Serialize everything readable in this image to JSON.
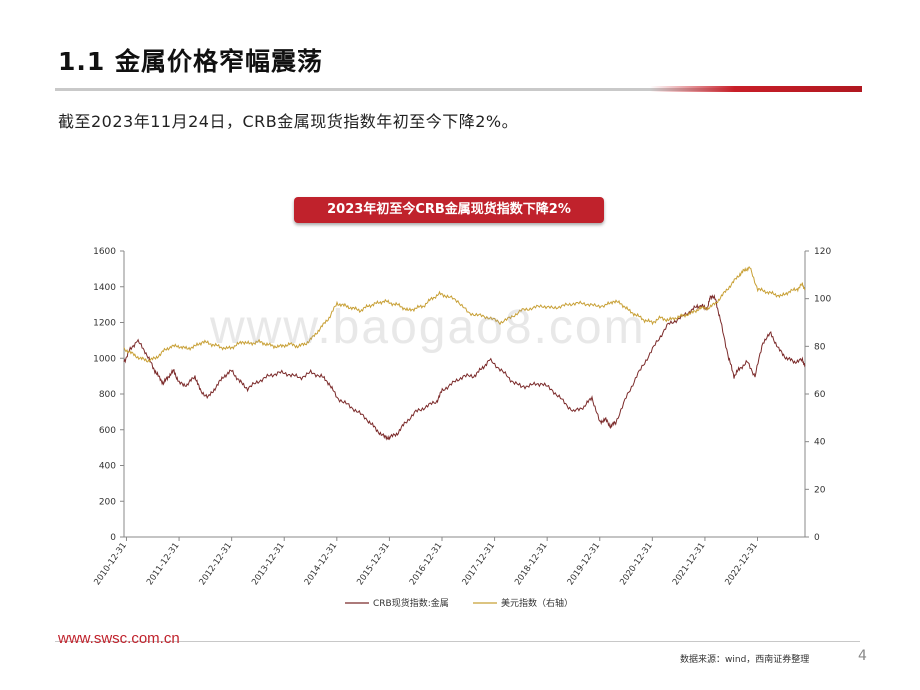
{
  "slide": {
    "title": "1.1  金属价格窄幅震荡",
    "subtitle": "截至2023年11月24日，CRB金属现货指数年初至今下降2%。",
    "chart_banner": "2023年初至今CRB金属现货指数下降2%",
    "watermark": "www.baogao8.com",
    "footer_url": "www.swsc.com.cn",
    "source": "数据来源：wind，西南证券整理",
    "page_number": "4",
    "accent_color": "#c0222c"
  },
  "chart_data": {
    "type": "line",
    "x_tick_labels": [
      "2010-12-31",
      "2011-12-31",
      "2012-12-31",
      "2013-12-31",
      "2014-12-31",
      "2015-12-31",
      "2016-12-31",
      "2017-12-31",
      "2018-12-31",
      "2019-12-31",
      "2020-12-31",
      "2021-12-31",
      "2022-12-31"
    ],
    "x_range": [
      2010.95,
      2023.9
    ],
    "ylim_left": [
      0,
      1600
    ],
    "yticks_left": [
      0,
      200,
      400,
      600,
      800,
      1000,
      1200,
      1400,
      1600
    ],
    "ylim_right": [
      0,
      120
    ],
    "yticks_right": [
      0,
      20,
      40,
      60,
      80,
      100,
      120
    ],
    "grid": false,
    "legend_position": "bottom",
    "series": [
      {
        "name": "CRB现货指数:金属",
        "axis": "left",
        "color": "#7b2a2a",
        "x": [
          2010.95,
          2011.05,
          2011.2,
          2011.35,
          2011.5,
          2011.6,
          2011.7,
          2011.8,
          2011.9,
          2012.0,
          2012.15,
          2012.3,
          2012.4,
          2012.55,
          2012.7,
          2012.85,
          2013.0,
          2013.15,
          2013.3,
          2013.5,
          2013.7,
          2013.9,
          2014.1,
          2014.3,
          2014.5,
          2014.7,
          2014.85,
          2015.0,
          2015.2,
          2015.4,
          2015.6,
          2015.75,
          2015.9,
          2016.0,
          2016.15,
          2016.3,
          2016.5,
          2016.7,
          2016.9,
          2017.0,
          2017.2,
          2017.4,
          2017.6,
          2017.75,
          2017.9,
          2018.1,
          2018.3,
          2018.5,
          2018.7,
          2018.9,
          2019.1,
          2019.3,
          2019.5,
          2019.7,
          2019.85,
          2020.0,
          2020.1,
          2020.2,
          2020.3,
          2020.5,
          2020.7,
          2020.9,
          2021.1,
          2021.3,
          2021.5,
          2021.7,
          2021.85,
          2021.95,
          2022.05,
          2022.1,
          2022.2,
          2022.3,
          2022.45,
          2022.55,
          2022.65,
          2022.8,
          2022.95,
          2023.1,
          2023.25,
          2023.4,
          2023.55,
          2023.7,
          2023.85,
          2023.9
        ],
        "y": [
          980,
          1040,
          1100,
          1040,
          950,
          900,
          860,
          900,
          930,
          860,
          850,
          900,
          820,
          780,
          840,
          900,
          930,
          870,
          830,
          870,
          900,
          920,
          910,
          890,
          920,
          900,
          860,
          780,
          740,
          700,
          650,
          600,
          560,
          555,
          580,
          640,
          700,
          730,
          760,
          820,
          860,
          900,
          900,
          940,
          990,
          940,
          880,
          840,
          850,
          860,
          820,
          760,
          700,
          730,
          780,
          640,
          660,
          620,
          640,
          780,
          900,
          1000,
          1100,
          1190,
          1220,
          1260,
          1290,
          1290,
          1280,
          1350,
          1330,
          1200,
          1000,
          900,
          940,
          980,
          900,
          1090,
          1140,
          1050,
          1000,
          980,
          990,
          960
        ]
      },
      {
        "name": "美元指数（右轴）",
        "axis": "right",
        "color": "#c8a036",
        "x": [
          2010.95,
          2011.1,
          2011.25,
          2011.4,
          2011.55,
          2011.7,
          2011.85,
          2012.0,
          2012.15,
          2012.3,
          2012.45,
          2012.6,
          2012.75,
          2012.9,
          2013.05,
          2013.2,
          2013.35,
          2013.5,
          2013.65,
          2013.8,
          2013.95,
          2014.1,
          2014.25,
          2014.4,
          2014.55,
          2014.7,
          2014.85,
          2015.0,
          2015.15,
          2015.3,
          2015.45,
          2015.6,
          2015.75,
          2015.9,
          2016.05,
          2016.2,
          2016.35,
          2016.5,
          2016.65,
          2016.8,
          2016.95,
          2017.1,
          2017.3,
          2017.5,
          2017.7,
          2017.9,
          2018.1,
          2018.3,
          2018.5,
          2018.7,
          2018.9,
          2019.1,
          2019.3,
          2019.5,
          2019.7,
          2019.9,
          2020.1,
          2020.25,
          2020.4,
          2020.55,
          2020.7,
          2020.85,
          2021.0,
          2021.15,
          2021.3,
          2021.45,
          2021.6,
          2021.75,
          2021.9,
          2022.05,
          2022.2,
          2022.35,
          2022.5,
          2022.65,
          2022.75,
          2022.85,
          2023.0,
          2023.15,
          2023.3,
          2023.45,
          2023.6,
          2023.75,
          2023.85,
          2023.9
        ],
        "y": [
          79,
          77,
          75,
          74,
          75,
          78,
          80,
          80,
          79,
          80,
          82,
          81,
          80,
          79,
          80,
          82,
          81,
          82,
          81,
          80,
          80,
          81,
          80,
          81,
          84,
          88,
          92,
          98,
          97,
          96,
          95,
          97,
          98,
          99,
          98,
          97,
          95,
          96,
          97,
          100,
          102,
          101,
          99,
          94,
          93,
          92,
          90,
          92,
          95,
          96,
          97,
          96,
          97,
          98,
          98,
          97,
          97,
          99,
          98,
          95,
          93,
          91,
          90,
          92,
          91,
          92,
          93,
          94,
          96,
          96,
          98,
          102,
          106,
          110,
          112,
          113,
          104,
          103,
          102,
          101,
          103,
          104,
          106,
          104
        ]
      }
    ]
  }
}
